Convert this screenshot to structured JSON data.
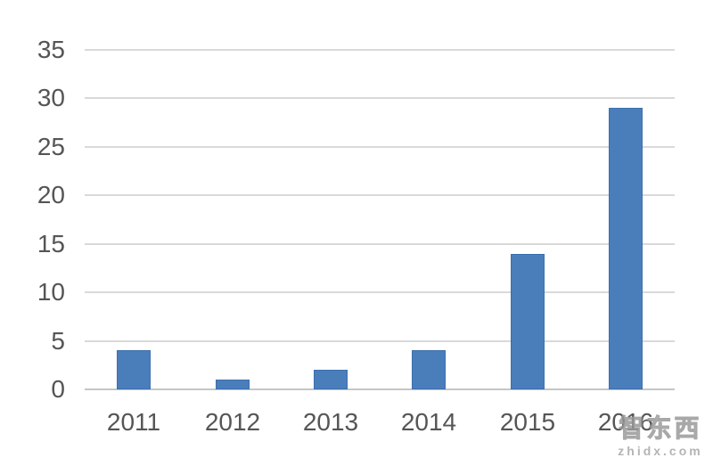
{
  "chart_data": {
    "type": "bar",
    "title": "",
    "xlabel": "",
    "ylabel": "",
    "categories": [
      "2011",
      "2012",
      "2013",
      "2014",
      "2015",
      "2016"
    ],
    "values": [
      4,
      1,
      2,
      4,
      14,
      29
    ],
    "ylim": [
      0,
      35
    ],
    "ytick_step": 5,
    "ytick_labels": [
      "0",
      "5",
      "10",
      "15",
      "20",
      "25",
      "30",
      "35"
    ],
    "grid": "horizontal gridlines on, every 5 units",
    "legend": "none",
    "bar_color": "#4a7ebb",
    "bar_border_color": "#3d6fae",
    "gridline_color": "#d9d9d9",
    "axis_line_color": "#c6c6c6",
    "label_color": "#555555"
  },
  "watermark": {
    "logo_text": "智东西",
    "site_text": "zhidx.com",
    "color": "#a8a8a8"
  }
}
